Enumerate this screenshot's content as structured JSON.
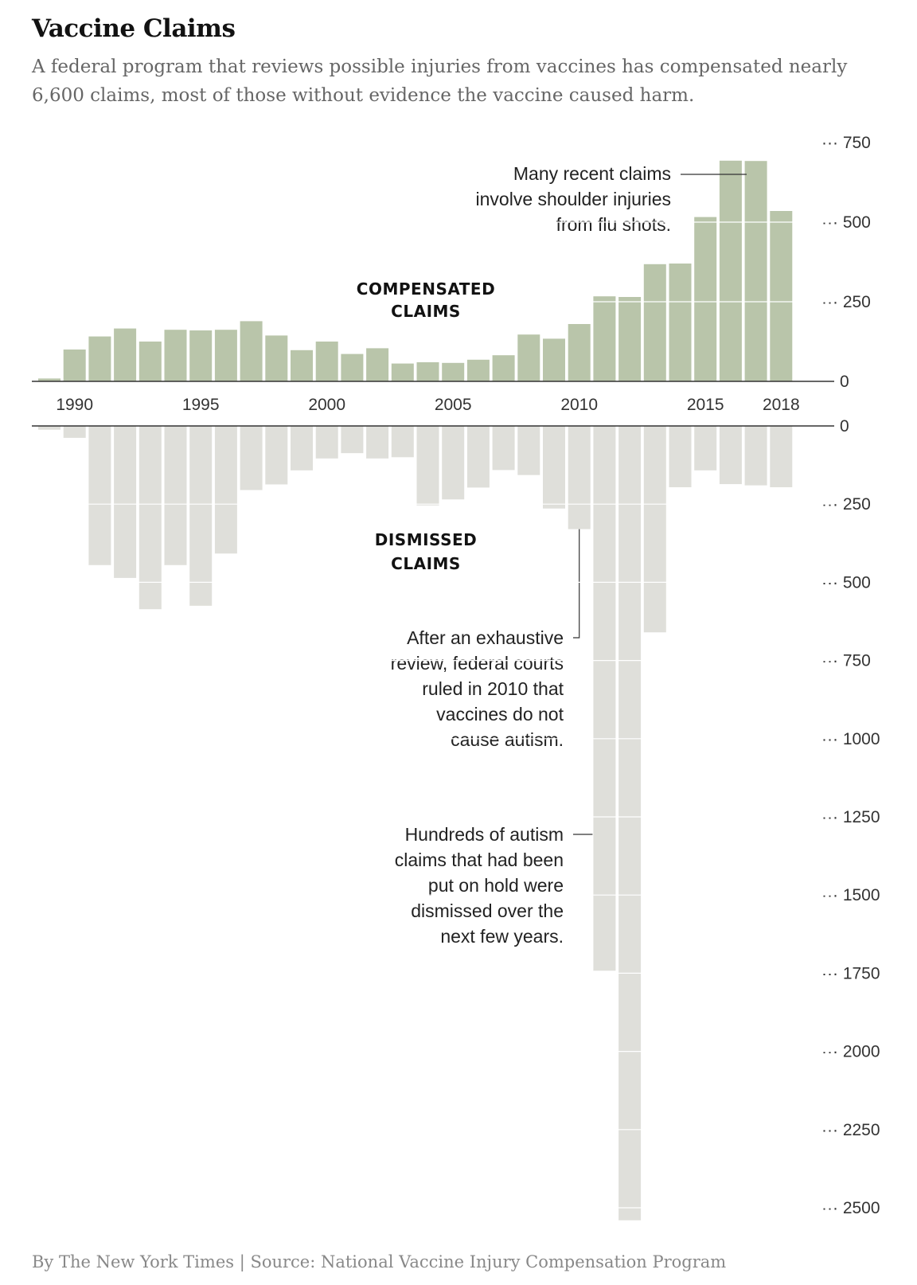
{
  "header": {
    "title": "Vaccine Claims",
    "subtitle": "A federal program that reviews possible injuries from vaccines has compensated nearly 6,600 claims, most of those without evidence the vaccine caused harm."
  },
  "footer": {
    "credit": "By The New York Times | Source: National Vaccine Injury Compensation Program"
  },
  "chart_data": {
    "type": "bar",
    "years": [
      1989,
      1990,
      1991,
      1992,
      1993,
      1994,
      1995,
      1996,
      1997,
      1998,
      1999,
      2000,
      2001,
      2002,
      2003,
      2004,
      2005,
      2006,
      2007,
      2008,
      2009,
      2010,
      2011,
      2012,
      2013,
      2014,
      2015,
      2016,
      2017,
      2018
    ],
    "x_tick_labels": [
      "1990",
      "1995",
      "2000",
      "2005",
      "2010",
      "2015",
      "2018"
    ],
    "series": [
      {
        "name": "COMPENSATED CLAIMS",
        "color": "#b9c5aa",
        "values": [
          9,
          100,
          141,
          166,
          125,
          162,
          160,
          162,
          189,
          144,
          98,
          125,
          86,
          104,
          56,
          60,
          58,
          68,
          82,
          147,
          134,
          180,
          267,
          265,
          368,
          370,
          516,
          693,
          692,
          535
        ]
      },
      {
        "name": "DISMISSED CLAIMS",
        "color": "#dfdfda",
        "values": [
          12,
          38,
          445,
          486,
          586,
          445,
          575,
          408,
          205,
          187,
          142,
          104,
          87,
          104,
          100,
          254,
          235,
          197,
          141,
          157,
          264,
          330,
          1742,
          2540,
          660,
          196,
          142,
          186,
          190,
          196
        ]
      }
    ],
    "top_axis": {
      "ticks": [
        "750",
        "500",
        "250",
        "0"
      ],
      "ylim": [
        0,
        750
      ]
    },
    "bottom_axis": {
      "ticks": [
        "0",
        "250",
        "500",
        "750",
        "1000",
        "1250",
        "1500",
        "1750",
        "2000",
        "2250",
        "2500"
      ],
      "ylim": [
        0,
        2500
      ]
    },
    "annotations": [
      {
        "lines": [
          "Many recent claims",
          "involve shoulder injuries",
          "from flu shots."
        ]
      },
      {
        "lines": [
          "After an exhaustive",
          "review, federal courts",
          "ruled in 2010 that",
          "vaccines do not",
          "cause autism."
        ]
      },
      {
        "lines": [
          "Hundreds of autism",
          "claims that had been",
          "put on hold were",
          "dismissed over the",
          "next few years."
        ]
      }
    ]
  }
}
